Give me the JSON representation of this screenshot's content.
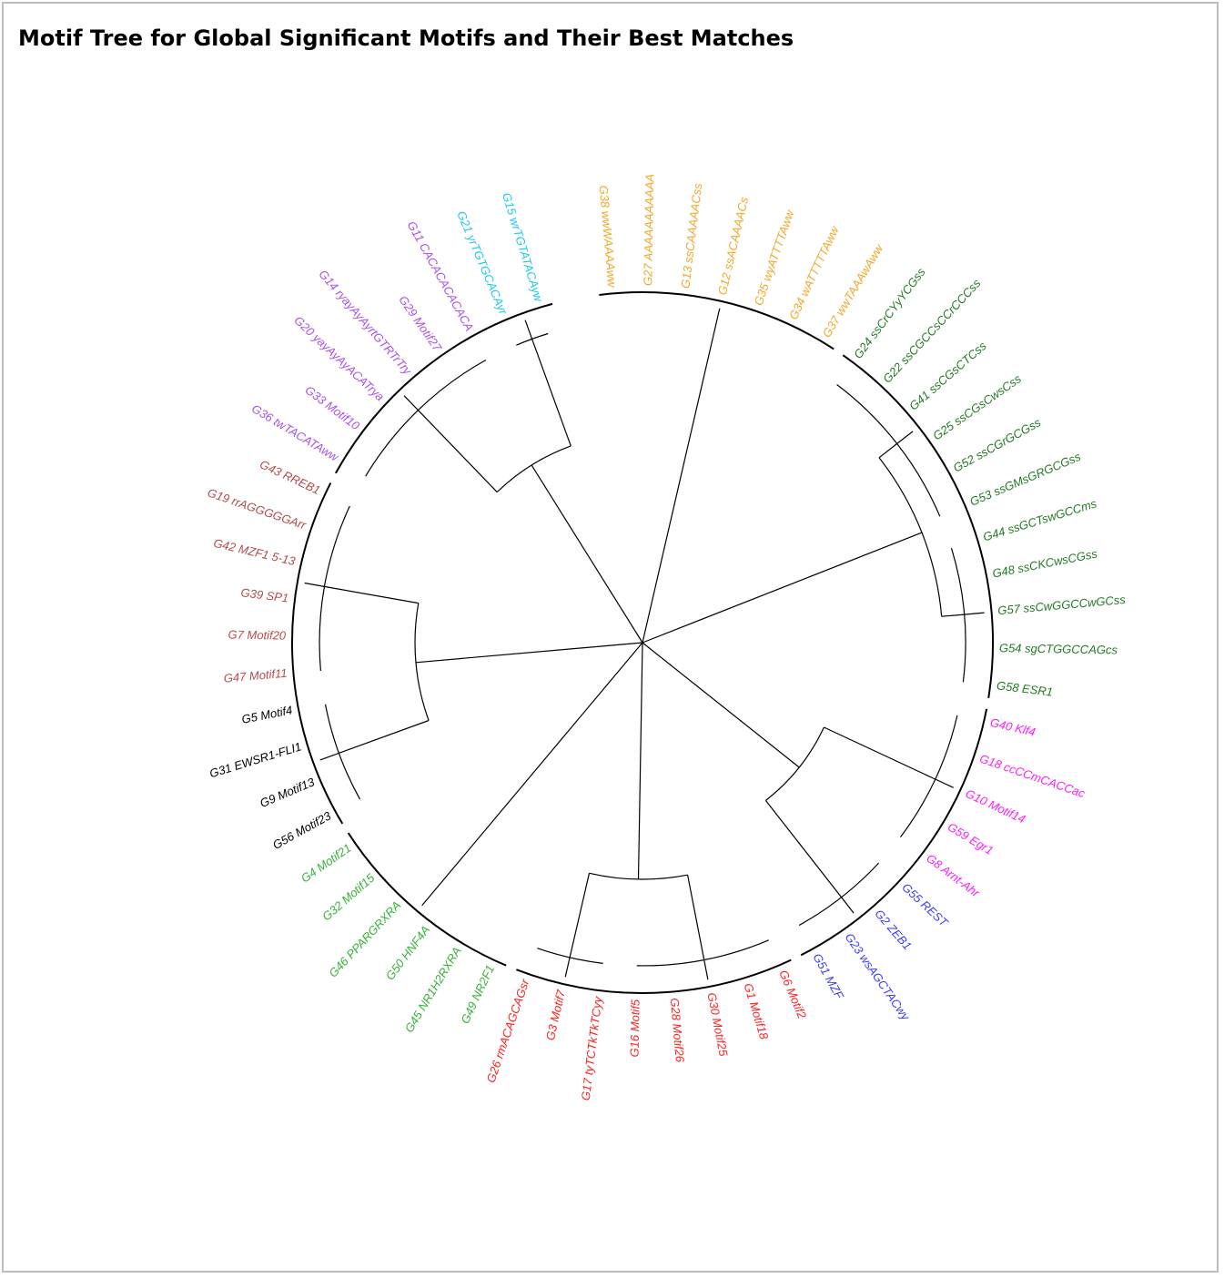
{
  "title": "Motif Tree for Global Significant Motifs and Their Best Matches",
  "colors": {
    "orange": "#f5a623",
    "green_dark": "#217a21",
    "magenta": "#ff1aff",
    "blue": "#3b3bff",
    "red": "#ff2020",
    "green": "#36b236",
    "black": "#000000",
    "brown": "#b54a4a",
    "purple": "#a94ff0",
    "cyan": "#1ec8f0"
  },
  "tree": {
    "labels": [
      {
        "text": "G38 wwWAAAAww",
        "color": "orange"
      },
      {
        "text": "G27 AAAAAAAAAAA",
        "color": "orange"
      },
      {
        "text": "G13 ssCAAAAACss",
        "color": "orange"
      },
      {
        "text": "G12 ssACAAAACs",
        "color": "orange"
      },
      {
        "text": "G35 wyATTTTAww",
        "color": "orange"
      },
      {
        "text": "G34 wATTTTTAww",
        "color": "orange"
      },
      {
        "text": "G37 wwTAAAwAww",
        "color": "orange"
      },
      {
        "text": "G24 ssCrCYyYCGss",
        "color": "green_dark"
      },
      {
        "text": "G22 ssCGCCsCCrCCCss",
        "color": "green_dark"
      },
      {
        "text": "G41 ssCGsCTCss",
        "color": "green_dark"
      },
      {
        "text": "G25 ssCGsCwsCss",
        "color": "green_dark"
      },
      {
        "text": "G52 ssCGrGCGss",
        "color": "green_dark"
      },
      {
        "text": "G53 ssGMsGRGCGss",
        "color": "green_dark"
      },
      {
        "text": "G44 ssGCTswGCCms",
        "color": "green_dark"
      },
      {
        "text": "G48 ssCKCwsCGss",
        "color": "green_dark"
      },
      {
        "text": "G57 ssCwGGCCwGCss",
        "color": "green_dark"
      },
      {
        "text": "G54 sgCTGGCCAGcs",
        "color": "green_dark"
      },
      {
        "text": "G58 ESR1",
        "color": "green_dark"
      },
      {
        "text": "G40 Klf4",
        "color": "magenta"
      },
      {
        "text": "G18 ccCCmCACCac",
        "color": "magenta"
      },
      {
        "text": "G10 Motif14",
        "color": "magenta"
      },
      {
        "text": "G59 Egr1",
        "color": "magenta"
      },
      {
        "text": "G8 Arnt-Ahr",
        "color": "magenta"
      },
      {
        "text": "G55 REST",
        "color": "blue"
      },
      {
        "text": "G2 ZEB1",
        "color": "blue"
      },
      {
        "text": "G23 wsAGCTACwy",
        "color": "blue"
      },
      {
        "text": "G51 MZF",
        "color": "blue"
      },
      {
        "text": "G6 Motif2",
        "color": "red"
      },
      {
        "text": "G1 Motif18",
        "color": "red"
      },
      {
        "text": "G30 Motif25",
        "color": "red"
      },
      {
        "text": "G28 Motif26",
        "color": "red"
      },
      {
        "text": "G16 Motif5",
        "color": "red"
      },
      {
        "text": "G17 tyTCTkTkTCyy",
        "color": "red"
      },
      {
        "text": "G3 Motif7",
        "color": "red"
      },
      {
        "text": "G26 rmACAGCAGsr",
        "color": "red"
      },
      {
        "text": "G49 NR2F1",
        "color": "green"
      },
      {
        "text": "G45 NR1H2RXRA",
        "color": "green"
      },
      {
        "text": "G50 HNF4A",
        "color": "green"
      },
      {
        "text": "G46 PPARGRXRA",
        "color": "green"
      },
      {
        "text": "G32 Motif15",
        "color": "green"
      },
      {
        "text": "G4 Motif21",
        "color": "green"
      },
      {
        "text": "G56 Motif23",
        "color": "black"
      },
      {
        "text": "G9 Motif13",
        "color": "black"
      },
      {
        "text": "G31 EWSR1-FLI1",
        "color": "black"
      },
      {
        "text": "G5 Motif4",
        "color": "black"
      },
      {
        "text": "G47 Motif11",
        "color": "brown"
      },
      {
        "text": "G7 Motif20",
        "color": "brown"
      },
      {
        "text": "G39 SP1",
        "color": "brown"
      },
      {
        "text": "G42 MZF1 5-13",
        "color": "brown"
      },
      {
        "text": "G19 rrAGGGGGArr",
        "color": "brown"
      },
      {
        "text": "G43 RREB1",
        "color": "brown"
      },
      {
        "text": "G36 twTACATAww",
        "color": "purple"
      },
      {
        "text": "G33 Motif10",
        "color": "purple"
      },
      {
        "text": "G20 yayAyAyACATrya",
        "color": "purple"
      },
      {
        "text": "G14 ryayAyAyrtGTRTrTry",
        "color": "purple"
      },
      {
        "text": "G29 Motif27",
        "color": "purple"
      },
      {
        "text": "G11 CACACACACACA",
        "color": "purple"
      },
      {
        "text": "G21 yrTGTGCACAyr",
        "color": "cyan"
      },
      {
        "text": "G15 wrTGTATACAyw",
        "color": "cyan"
      }
    ]
  }
}
